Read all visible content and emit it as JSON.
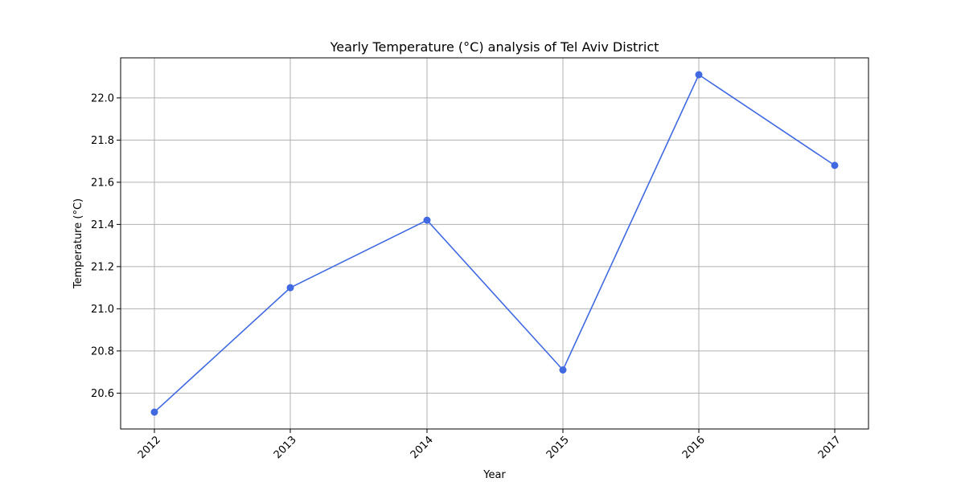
{
  "chart_data": {
    "type": "line",
    "title": "Yearly Temperature (°C) analysis of Tel Aviv District",
    "xlabel": "Year",
    "ylabel": "Temperature (°C)",
    "categories": [
      "2012",
      "2013",
      "2014",
      "2015",
      "2016",
      "2017"
    ],
    "series": [
      {
        "values": [
          20.51,
          21.1,
          21.42,
          20.71,
          22.11,
          21.68
        ],
        "color": "#4169e1",
        "marker": "circle"
      }
    ],
    "yticks": [
      "20.6",
      "20.8",
      "21.0",
      "21.2",
      "21.4",
      "21.6",
      "21.8",
      "22.0"
    ],
    "ylim": [
      20.43,
      22.19
    ],
    "grid": true,
    "xtick_rotation": 45,
    "legend": "none"
  }
}
